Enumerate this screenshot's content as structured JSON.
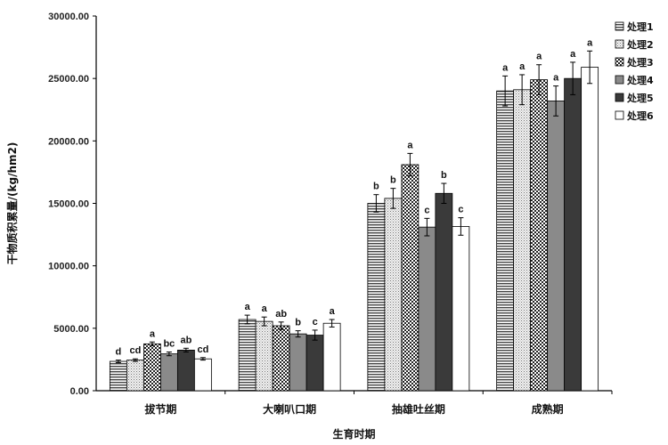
{
  "chart_data": {
    "type": "bar",
    "title": "",
    "xlabel": "生育时期",
    "ylabel": "干物质积累量/(kg/hm2)",
    "ylim": [
      0,
      30000
    ],
    "yticks": [
      "0.00",
      "5000.00",
      "10000.00",
      "15000.00",
      "20000.00",
      "25000.00",
      "30000.00"
    ],
    "categories": [
      "拔节期",
      "大喇叭口期",
      "抽雄吐丝期",
      "成熟期"
    ],
    "legend_position": "right",
    "series": [
      {
        "name": "处理1",
        "pattern": "hstripe",
        "values": [
          2350,
          5700,
          15000,
          24000
        ],
        "errors": [
          100,
          350,
          700,
          1200
        ],
        "labels": [
          "d",
          "a",
          "b",
          "a"
        ]
      },
      {
        "name": "处理2",
        "pattern": "dots",
        "values": [
          2450,
          5550,
          15400,
          24100
        ],
        "errors": [
          100,
          350,
          800,
          1200
        ],
        "labels": [
          "cd",
          "a",
          "b",
          "a"
        ]
      },
      {
        "name": "处理3",
        "pattern": "check",
        "values": [
          3750,
          5200,
          18100,
          24900
        ],
        "errors": [
          150,
          300,
          900,
          1200
        ],
        "labels": [
          "a",
          "ab",
          "a",
          "a"
        ]
      },
      {
        "name": "处理4",
        "pattern": "gray",
        "values": [
          2950,
          4550,
          13100,
          23200
        ],
        "errors": [
          150,
          250,
          700,
          1200
        ],
        "labels": [
          "bc",
          "b",
          "c",
          "a"
        ]
      },
      {
        "name": "处理5",
        "pattern": "dark",
        "values": [
          3250,
          4450,
          15800,
          25000
        ],
        "errors": [
          150,
          400,
          800,
          1300
        ],
        "labels": [
          "ab",
          "c",
          "b",
          "a"
        ]
      },
      {
        "name": "处理6",
        "pattern": "white",
        "values": [
          2550,
          5400,
          13150,
          25900
        ],
        "errors": [
          100,
          300,
          700,
          1300
        ],
        "labels": [
          "cd",
          "a",
          "c",
          "a"
        ]
      }
    ]
  }
}
